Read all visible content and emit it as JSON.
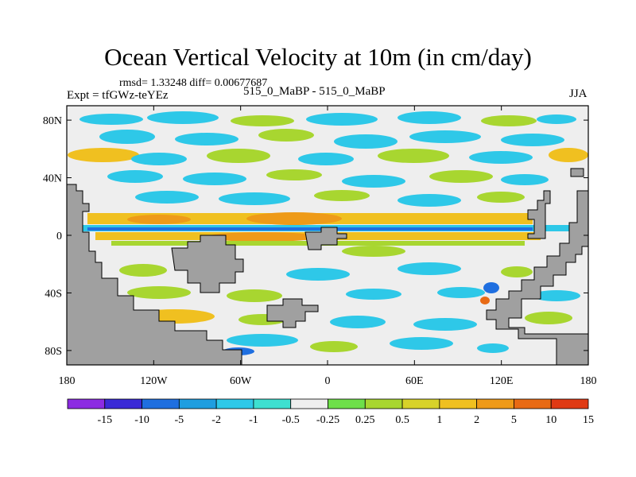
{
  "title": "Ocean Vertical Velocity at 10m (in cm/day)",
  "stats": {
    "rmsd_label": "rmsd=",
    "rmsd": "1.33248",
    "diff_label": "diff=",
    "diff": "0.00677687"
  },
  "expt": "Expt = tfGWz-teYEz",
  "case_info": "515_0_MaBP - 515_0_MaBP",
  "season": "JJA",
  "map": {
    "projection": "cylindrical-equidistant",
    "lon_range": [
      -180,
      180
    ],
    "lat_range": [
      -90,
      90
    ],
    "land_color": "#a0a0a0",
    "lat_ticks": [
      {
        "value": 80,
        "label": "80N"
      },
      {
        "value": 40,
        "label": "40N"
      },
      {
        "value": 0,
        "label": "0"
      },
      {
        "value": -40,
        "label": "40S"
      },
      {
        "value": -80,
        "label": "80S"
      }
    ],
    "lon_ticks": [
      {
        "value": -180,
        "label": "180"
      },
      {
        "value": -120,
        "label": "120W"
      },
      {
        "value": -60,
        "label": "60W"
      },
      {
        "value": 0,
        "label": "0"
      },
      {
        "value": 60,
        "label": "60E"
      },
      {
        "value": 120,
        "label": "120E"
      },
      {
        "value": 180,
        "label": "180"
      }
    ]
  },
  "colorbar": {
    "levels": [
      "-15",
      "-10",
      "-5",
      "-2",
      "-1",
      "-0.5",
      "-0.25",
      "0.25",
      "0.5",
      "1",
      "2",
      "5",
      "10",
      "15"
    ],
    "colors": [
      "#8c2be2",
      "#3a2ad6",
      "#1f6fe0",
      "#1f9ee0",
      "#2ec8e8",
      "#3ee0d0",
      "#eeeeee",
      "#6ee04a",
      "#a8d630",
      "#d8d22a",
      "#f0c020",
      "#ee9a18",
      "#e86a14",
      "#e03a14"
    ]
  }
}
